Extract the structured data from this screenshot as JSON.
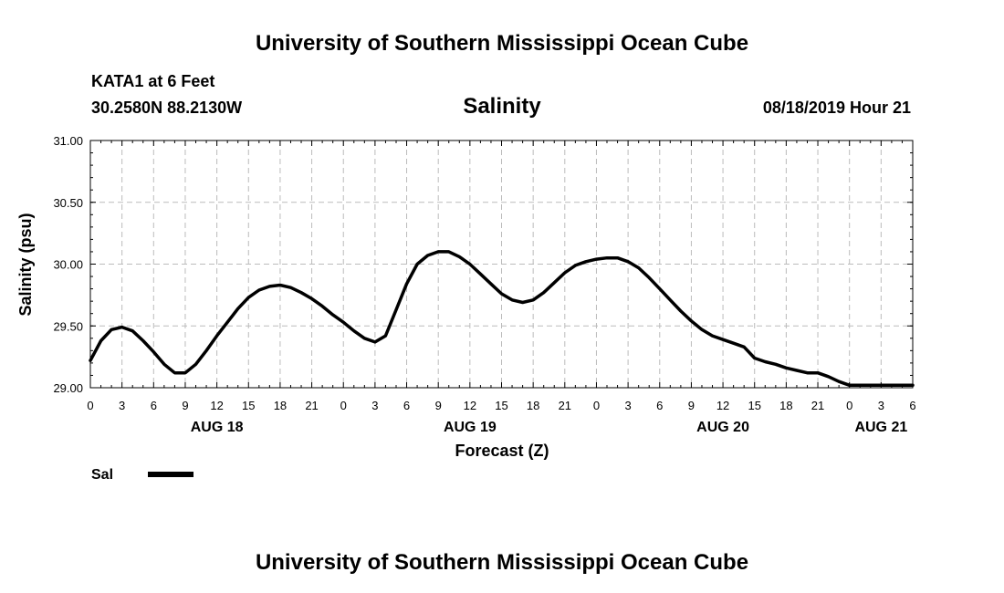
{
  "header": {
    "top_title": "University of Southern Mississippi Ocean Cube",
    "bottom_title": "University of Southern Mississippi Ocean Cube",
    "station": "KATA1 at 6 Feet",
    "coords": "30.2580N 88.2130W",
    "datetime": "08/18/2019 Hour 21"
  },
  "chart_data": {
    "type": "line",
    "title": "Salinity",
    "xlabel": "Forecast (Z)",
    "ylabel": "Salinity (psu)",
    "xlim": [
      0,
      78
    ],
    "ylim": [
      29.0,
      31.0
    ],
    "grid": true,
    "y_ticks": [
      "29.00",
      "29.50",
      "30.00",
      "30.50",
      "31.00"
    ],
    "x_ticks": [
      {
        "h": 0,
        "label": "0"
      },
      {
        "h": 3,
        "label": "3"
      },
      {
        "h": 6,
        "label": "6"
      },
      {
        "h": 9,
        "label": "9"
      },
      {
        "h": 12,
        "label": "12"
      },
      {
        "h": 15,
        "label": "15"
      },
      {
        "h": 18,
        "label": "18"
      },
      {
        "h": 21,
        "label": "21"
      },
      {
        "h": 24,
        "label": "0"
      },
      {
        "h": 27,
        "label": "3"
      },
      {
        "h": 30,
        "label": "6"
      },
      {
        "h": 33,
        "label": "9"
      },
      {
        "h": 36,
        "label": "12"
      },
      {
        "h": 39,
        "label": "15"
      },
      {
        "h": 42,
        "label": "18"
      },
      {
        "h": 45,
        "label": "21"
      },
      {
        "h": 48,
        "label": "0"
      },
      {
        "h": 51,
        "label": "3"
      },
      {
        "h": 54,
        "label": "6"
      },
      {
        "h": 57,
        "label": "9"
      },
      {
        "h": 60,
        "label": "12"
      },
      {
        "h": 63,
        "label": "15"
      },
      {
        "h": 66,
        "label": "18"
      },
      {
        "h": 69,
        "label": "21"
      },
      {
        "h": 72,
        "label": "0"
      },
      {
        "h": 75,
        "label": "3"
      },
      {
        "h": 78,
        "label": "6"
      }
    ],
    "day_labels": [
      {
        "h": 12,
        "label": "AUG 18"
      },
      {
        "h": 36,
        "label": "AUG 19"
      },
      {
        "h": 60,
        "label": "AUG 20"
      },
      {
        "h": 75,
        "label": "AUG 21"
      }
    ],
    "legend": {
      "label": "Sal",
      "position": "bottom-left"
    },
    "series": [
      {
        "name": "Sal",
        "x": [
          0,
          1,
          2,
          3,
          4,
          5,
          6,
          7,
          8,
          9,
          10,
          11,
          12,
          13,
          14,
          15,
          16,
          17,
          18,
          19,
          20,
          21,
          22,
          23,
          24,
          25,
          26,
          27,
          28,
          29,
          30,
          31,
          32,
          33,
          34,
          35,
          36,
          37,
          38,
          39,
          40,
          41,
          42,
          43,
          44,
          45,
          46,
          47,
          48,
          49,
          50,
          51,
          52,
          53,
          54,
          55,
          56,
          57,
          58,
          59,
          60,
          61,
          62,
          63,
          64,
          65,
          66,
          67,
          68,
          69,
          70,
          71,
          72,
          73,
          74,
          75,
          76,
          77,
          78
        ],
        "values": [
          29.22,
          29.38,
          29.47,
          29.49,
          29.46,
          29.38,
          29.29,
          29.19,
          29.12,
          29.12,
          29.19,
          29.3,
          29.42,
          29.53,
          29.64,
          29.73,
          29.79,
          29.82,
          29.83,
          29.81,
          29.77,
          29.72,
          29.66,
          29.59,
          29.53,
          29.46,
          29.4,
          29.37,
          29.42,
          29.63,
          29.84,
          30.0,
          30.07,
          30.1,
          30.1,
          30.06,
          30.0,
          29.92,
          29.84,
          29.76,
          29.71,
          29.69,
          29.71,
          29.77,
          29.85,
          29.93,
          29.99,
          30.02,
          30.04,
          30.05,
          30.05,
          30.02,
          29.97,
          29.89,
          29.8,
          29.71,
          29.62,
          29.54,
          29.47,
          29.42,
          29.39,
          29.36,
          29.33,
          29.24,
          29.21,
          29.19,
          29.16,
          29.14,
          29.12,
          29.12,
          29.09,
          29.05,
          29.02,
          29.02,
          29.02,
          29.02,
          29.02,
          29.02,
          29.02
        ]
      }
    ]
  }
}
